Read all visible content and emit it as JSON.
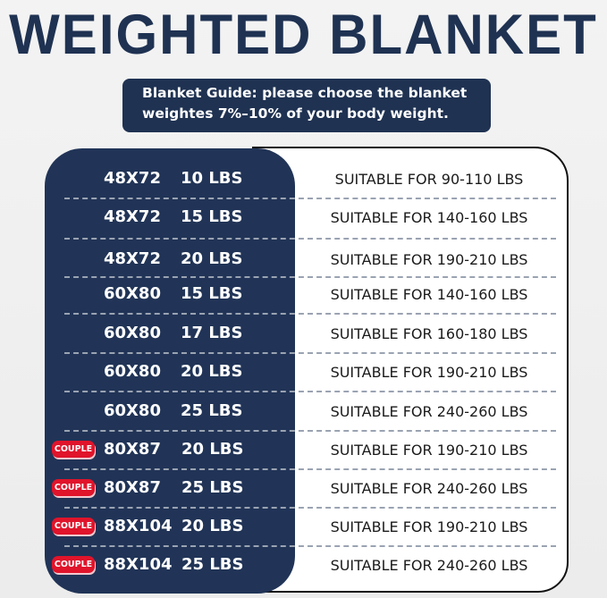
{
  "title": "WEIGHTED BLANKET",
  "guide": {
    "line1": "Blanket Guide: please choose the blanket",
    "line2": "weightes 7%–10% of your body weight."
  },
  "badge_label": "COUPLE",
  "rows": [
    {
      "size": "48X72",
      "weight": "10 LBS",
      "suitable": "SUITABLE FOR 90-110 LBS",
      "couple": false
    },
    {
      "size": "48X72",
      "weight": "15 LBS",
      "suitable": "SUITABLE FOR 140-160 LBS",
      "couple": false
    },
    {
      "size": "48X72",
      "weight": "20 LBS",
      "suitable": "SUITABLE FOR 190-210 LBS",
      "couple": false
    },
    {
      "size": "60X80",
      "weight": "15 LBS",
      "suitable": "SUITABLE FOR 140-160 LBS",
      "couple": false
    },
    {
      "size": "60X80",
      "weight": "17 LBS",
      "suitable": "SUITABLE FOR 160-180 LBS",
      "couple": false
    },
    {
      "size": "60X80",
      "weight": "20 LBS",
      "suitable": "SUITABLE FOR 190-210 LBS",
      "couple": false
    },
    {
      "size": "60X80",
      "weight": "25 LBS",
      "suitable": "SUITABLE FOR 240-260 LBS",
      "couple": false
    },
    {
      "size": "80X87",
      "weight": "20 LBS",
      "suitable": "SUITABLE FOR 190-210 LBS",
      "couple": true
    },
    {
      "size": "80X87",
      "weight": "25 LBS",
      "suitable": "SUITABLE FOR 240-260 LBS",
      "couple": true
    },
    {
      "size": "88X104",
      "weight": "20 LBS",
      "suitable": "SUITABLE FOR 190-210 LBS",
      "couple": true
    },
    {
      "size": "88X104",
      "weight": "25 LBS",
      "suitable": "SUITABLE FOR 240-260 LBS",
      "couple": true
    }
  ],
  "colors": {
    "navy": "#213457",
    "badge_red": "#e0142b"
  }
}
